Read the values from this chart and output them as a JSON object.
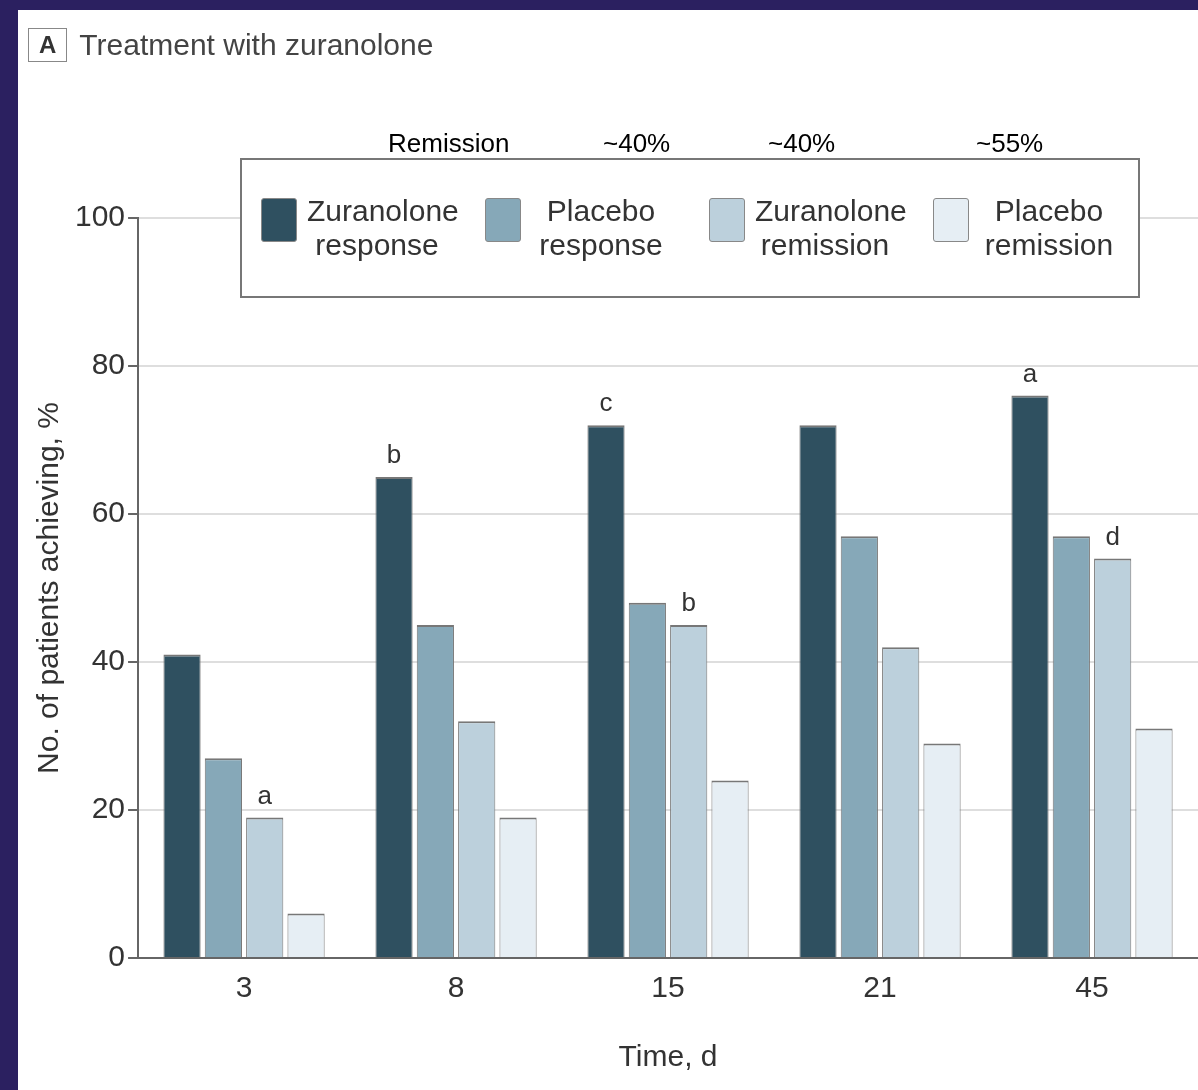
{
  "chart_data": {
    "type": "bar",
    "title": "Treatment with zuranolone",
    "xlabel": "Time, d",
    "ylabel": "No. of patients achieving, %",
    "categories": [
      "3",
      "8",
      "15",
      "21",
      "45"
    ],
    "series": [
      {
        "name": "Zuranolone response",
        "color": "#2f5060",
        "values": [
          41,
          65,
          72,
          72,
          76
        ]
      },
      {
        "name": "Placebo response",
        "color": "#86a8b8",
        "values": [
          27,
          45,
          48,
          57,
          57
        ]
      },
      {
        "name": "Zuranolone remission",
        "color": "#bcd0dc",
        "values": [
          19,
          32,
          45,
          42,
          54
        ]
      },
      {
        "name": "Placebo remission",
        "color": "#e6eef4",
        "values": [
          6,
          19,
          24,
          29,
          31
        ]
      }
    ],
    "ylim": [
      0,
      100
    ],
    "yticks": [
      0,
      20,
      40,
      60,
      80,
      100
    ],
    "grid": "y",
    "legend": "top",
    "annotations": [
      "A",
      "Remission",
      "~40%",
      "~40%",
      "~55%",
      {
        "text": "a",
        "x": "3",
        "y": 19
      },
      "b",
      "c",
      "a",
      {
        "text": "b",
        "x": "15",
        "y": 45
      },
      {
        "text": "d",
        "x": "45",
        "y": 54
      }
    ]
  }
}
